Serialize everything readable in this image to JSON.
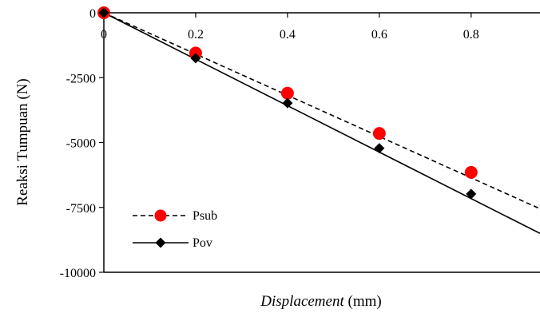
{
  "chart_data": {
    "type": "line",
    "title": "",
    "xlabel": "Displacement",
    "xlabel_unit": "(mm)",
    "ylabel": "Reaksi Tumpuan (N)",
    "xlim": [
      0,
      0.95
    ],
    "ylim": [
      -10000,
      0
    ],
    "x_ticks": [
      {
        "value": 0,
        "label": "0"
      },
      {
        "value": 0.2,
        "label": "0.2"
      },
      {
        "value": 0.4,
        "label": "0.4"
      },
      {
        "value": 0.6,
        "label": "0.6"
      },
      {
        "value": 0.8,
        "label": "0.8"
      }
    ],
    "y_ticks": [
      {
        "value": 0,
        "label": "0"
      },
      {
        "value": -2500,
        "label": "-2500"
      },
      {
        "value": -5000,
        "label": "-5000"
      },
      {
        "value": -7500,
        "label": "-7500"
      },
      {
        "value": -10000,
        "label": "-10000"
      }
    ],
    "grid": false,
    "legend_position": "bottom-left",
    "series": [
      {
        "name": "Psub",
        "color": "#ff0000",
        "marker": "circle",
        "line_style": "dashed",
        "trend_slope": -7950,
        "points": [
          {
            "x": 0,
            "y": 0
          },
          {
            "x": 0.2,
            "y": -1550
          },
          {
            "x": 0.4,
            "y": -3100
          },
          {
            "x": 0.6,
            "y": -4650
          },
          {
            "x": 0.8,
            "y": -6150
          }
        ]
      },
      {
        "name": "Pov",
        "color": "#000000",
        "marker": "diamond",
        "line_style": "solid",
        "trend_slope": -8950,
        "points": [
          {
            "x": 0,
            "y": 0
          },
          {
            "x": 0.2,
            "y": -1750
          },
          {
            "x": 0.4,
            "y": -3480
          },
          {
            "x": 0.6,
            "y": -5220
          },
          {
            "x": 0.8,
            "y": -6980
          }
        ]
      }
    ]
  }
}
